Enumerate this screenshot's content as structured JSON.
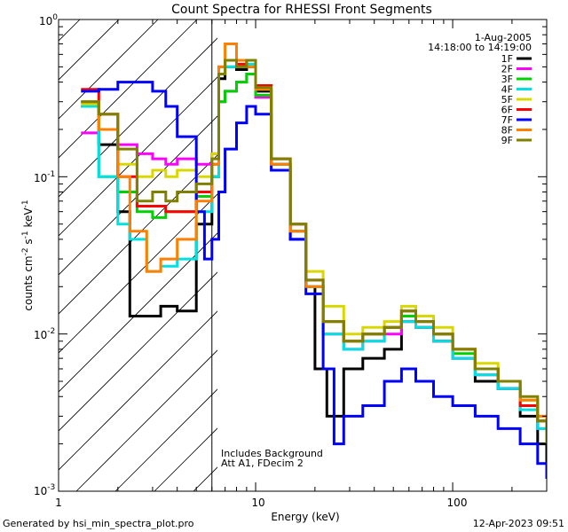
{
  "chart_data": {
    "type": "line",
    "title": "Count Spectra for RHESSI Front Segments",
    "xlabel": "Energy (keV)",
    "ylabel": {
      "base": "counts cm",
      "exp1": "-2",
      "mid": " s",
      "exp2": "-1",
      "mid2": " keV",
      "exp3": "-1"
    },
    "x_scale": "log",
    "y_scale": "log",
    "xlim": [
      1,
      300
    ],
    "ylim": [
      0.001,
      1
    ],
    "x_ticks": [
      {
        "value": 1,
        "label": "1"
      },
      {
        "value": 10,
        "label": "10"
      },
      {
        "value": 100,
        "label": "100"
      }
    ],
    "y_ticks": [
      {
        "value": 1,
        "label": "10",
        "exp": "0"
      },
      {
        "value": 0.1,
        "label": "10",
        "exp": "-1"
      },
      {
        "value": 0.01,
        "label": "10",
        "exp": "-2"
      },
      {
        "value": 0.001,
        "label": "10",
        "exp": "-3"
      }
    ],
    "attenuator_boundary_keV": 6,
    "hatched_region_keV": [
      1,
      6
    ],
    "date": "1-Aug-2005",
    "time_range": "14:18:00 to 14:19:00",
    "annotations": [
      "Includes Background",
      "Att A1, FDecim 2"
    ],
    "footer_left": "Generated by hsi_min_spectra_plot.pro",
    "footer_right": "12-Apr-2023 09:51",
    "series": [
      {
        "name": "1F",
        "color": "#000000",
        "points": [
          [
            1.3,
            0.28
          ],
          [
            1.6,
            0.16
          ],
          [
            2.0,
            0.06
          ],
          [
            2.3,
            0.013
          ],
          [
            2.8,
            0.013
          ],
          [
            3.3,
            0.015
          ],
          [
            4.0,
            0.014
          ],
          [
            5.0,
            0.05
          ],
          [
            6.0,
            0.1
          ],
          [
            6.5,
            0.42
          ],
          [
            7.0,
            0.5
          ],
          [
            8.0,
            0.48
          ],
          [
            9.0,
            0.5
          ],
          [
            10,
            0.35
          ],
          [
            12,
            0.12
          ],
          [
            15,
            0.04
          ],
          [
            18,
            0.02
          ],
          [
            20,
            0.006
          ],
          [
            23,
            0.003
          ],
          [
            28,
            0.006
          ],
          [
            35,
            0.007
          ],
          [
            45,
            0.008
          ],
          [
            55,
            0.012
          ],
          [
            65,
            0.011
          ],
          [
            80,
            0.009
          ],
          [
            100,
            0.007
          ],
          [
            130,
            0.005
          ],
          [
            170,
            0.0045
          ],
          [
            220,
            0.003
          ],
          [
            270,
            0.002
          ],
          [
            300,
            0.0015
          ]
        ]
      },
      {
        "name": "2F",
        "color": "#ff00ff",
        "points": [
          [
            1.3,
            0.19
          ],
          [
            1.6,
            0.2
          ],
          [
            2.0,
            0.16
          ],
          [
            2.5,
            0.14
          ],
          [
            3.0,
            0.13
          ],
          [
            3.5,
            0.12
          ],
          [
            4.0,
            0.13
          ],
          [
            5.0,
            0.12
          ],
          [
            6.0,
            0.14
          ],
          [
            6.5,
            0.3
          ],
          [
            7.0,
            0.35
          ],
          [
            8.0,
            0.4
          ],
          [
            9.0,
            0.45
          ],
          [
            10,
            0.32
          ],
          [
            12,
            0.12
          ],
          [
            15,
            0.045
          ],
          [
            18,
            0.02
          ],
          [
            22,
            0.01
          ],
          [
            28,
            0.008
          ],
          [
            35,
            0.009
          ],
          [
            45,
            0.01
          ],
          [
            55,
            0.012
          ],
          [
            65,
            0.011
          ],
          [
            80,
            0.009
          ],
          [
            100,
            0.007
          ],
          [
            130,
            0.0055
          ],
          [
            170,
            0.0045
          ],
          [
            220,
            0.0035
          ],
          [
            270,
            0.0025
          ],
          [
            300,
            0.002
          ]
        ]
      },
      {
        "name": "3F",
        "color": "#00d000",
        "points": [
          [
            1.3,
            0.3
          ],
          [
            1.6,
            0.1
          ],
          [
            2.0,
            0.08
          ],
          [
            2.5,
            0.06
          ],
          [
            3.0,
            0.055
          ],
          [
            3.5,
            0.06
          ],
          [
            4.0,
            0.06
          ],
          [
            5.0,
            0.075
          ],
          [
            6.0,
            0.1
          ],
          [
            6.5,
            0.3
          ],
          [
            7.0,
            0.35
          ],
          [
            8.0,
            0.4
          ],
          [
            9.0,
            0.45
          ],
          [
            10,
            0.33
          ],
          [
            12,
            0.12
          ],
          [
            15,
            0.045
          ],
          [
            18,
            0.02
          ],
          [
            22,
            0.012
          ],
          [
            28,
            0.009
          ],
          [
            35,
            0.01
          ],
          [
            45,
            0.011
          ],
          [
            55,
            0.013
          ],
          [
            65,
            0.012
          ],
          [
            80,
            0.01
          ],
          [
            100,
            0.0075
          ],
          [
            130,
            0.006
          ],
          [
            170,
            0.005
          ],
          [
            220,
            0.0038
          ],
          [
            270,
            0.0028
          ],
          [
            300,
            0.0022
          ]
        ]
      },
      {
        "name": "4F",
        "color": "#00e0e0",
        "points": [
          [
            1.3,
            0.28
          ],
          [
            1.6,
            0.1
          ],
          [
            2.0,
            0.05
          ],
          [
            2.3,
            0.04
          ],
          [
            2.8,
            0.025
          ],
          [
            3.3,
            0.027
          ],
          [
            4.0,
            0.03
          ],
          [
            5.0,
            0.06
          ],
          [
            6.0,
            0.1
          ],
          [
            6.5,
            0.45
          ],
          [
            7.0,
            0.5
          ],
          [
            8.0,
            0.5
          ],
          [
            9.0,
            0.52
          ],
          [
            10,
            0.36
          ],
          [
            12,
            0.12
          ],
          [
            15,
            0.045
          ],
          [
            18,
            0.02
          ],
          [
            22,
            0.01
          ],
          [
            28,
            0.008
          ],
          [
            35,
            0.009
          ],
          [
            45,
            0.011
          ],
          [
            55,
            0.012
          ],
          [
            65,
            0.011
          ],
          [
            80,
            0.009
          ],
          [
            100,
            0.007
          ],
          [
            130,
            0.0055
          ],
          [
            170,
            0.0045
          ],
          [
            220,
            0.0033
          ],
          [
            270,
            0.0025
          ],
          [
            300,
            0.002
          ]
        ]
      },
      {
        "name": "5F",
        "color": "#d8d800",
        "points": [
          [
            1.3,
            0.29
          ],
          [
            1.6,
            0.2
          ],
          [
            2.0,
            0.12
          ],
          [
            2.5,
            0.1
          ],
          [
            3.0,
            0.11
          ],
          [
            3.5,
            0.1
          ],
          [
            4.0,
            0.11
          ],
          [
            5.0,
            0.1
          ],
          [
            6.0,
            0.14
          ],
          [
            6.5,
            0.45
          ],
          [
            7.0,
            0.55
          ],
          [
            8.0,
            0.5
          ],
          [
            9.0,
            0.55
          ],
          [
            10,
            0.38
          ],
          [
            12,
            0.13
          ],
          [
            15,
            0.05
          ],
          [
            18,
            0.025
          ],
          [
            22,
            0.015
          ],
          [
            28,
            0.01
          ],
          [
            35,
            0.011
          ],
          [
            45,
            0.012
          ],
          [
            55,
            0.015
          ],
          [
            65,
            0.013
          ],
          [
            80,
            0.011
          ],
          [
            100,
            0.008
          ],
          [
            130,
            0.0065
          ],
          [
            170,
            0.005
          ],
          [
            220,
            0.0038
          ],
          [
            270,
            0.003
          ],
          [
            300,
            0.0025
          ]
        ]
      },
      {
        "name": "6F",
        "color": "#ff0000",
        "points": [
          [
            1.3,
            0.36
          ],
          [
            1.6,
            0.25
          ],
          [
            2.0,
            0.1
          ],
          [
            2.5,
            0.065
          ],
          [
            3.0,
            0.065
          ],
          [
            3.5,
            0.06
          ],
          [
            4.0,
            0.06
          ],
          [
            5.0,
            0.08
          ],
          [
            6.0,
            0.12
          ],
          [
            6.5,
            0.5
          ],
          [
            7.0,
            0.55
          ],
          [
            8.0,
            0.52
          ],
          [
            9.0,
            0.55
          ],
          [
            10,
            0.38
          ],
          [
            12,
            0.13
          ],
          [
            15,
            0.05
          ],
          [
            18,
            0.022
          ],
          [
            22,
            0.012
          ],
          [
            28,
            0.009
          ],
          [
            35,
            0.01
          ],
          [
            45,
            0.011
          ],
          [
            55,
            0.014
          ],
          [
            65,
            0.012
          ],
          [
            80,
            0.01
          ],
          [
            100,
            0.008
          ],
          [
            130,
            0.006
          ],
          [
            170,
            0.005
          ],
          [
            220,
            0.0035
          ],
          [
            270,
            0.0028
          ],
          [
            300,
            0.0022
          ]
        ]
      },
      {
        "name": "7F",
        "color": "#0000ff",
        "points": [
          [
            1.3,
            0.35
          ],
          [
            1.6,
            0.36
          ],
          [
            2.0,
            0.4
          ],
          [
            2.5,
            0.4
          ],
          [
            3.0,
            0.35
          ],
          [
            3.5,
            0.28
          ],
          [
            4.0,
            0.18
          ],
          [
            5.0,
            0.06
          ],
          [
            5.5,
            0.03
          ],
          [
            6.0,
            0.04
          ],
          [
            6.5,
            0.08
          ],
          [
            7.0,
            0.15
          ],
          [
            8.0,
            0.22
          ],
          [
            9.0,
            0.28
          ],
          [
            10,
            0.25
          ],
          [
            12,
            0.11
          ],
          [
            15,
            0.04
          ],
          [
            18,
            0.018
          ],
          [
            22,
            0.006
          ],
          [
            25,
            0.002
          ],
          [
            28,
            0.003
          ],
          [
            35,
            0.0035
          ],
          [
            45,
            0.005
          ],
          [
            55,
            0.006
          ],
          [
            65,
            0.005
          ],
          [
            80,
            0.004
          ],
          [
            100,
            0.0035
          ],
          [
            130,
            0.003
          ],
          [
            170,
            0.0025
          ],
          [
            220,
            0.002
          ],
          [
            270,
            0.0015
          ],
          [
            300,
            0.0012
          ]
        ]
      },
      {
        "name": "8F",
        "color": "#ff8000",
        "points": [
          [
            1.3,
            0.3
          ],
          [
            1.6,
            0.2
          ],
          [
            2.0,
            0.1
          ],
          [
            2.3,
            0.045
          ],
          [
            2.8,
            0.025
          ],
          [
            3.3,
            0.03
          ],
          [
            4.0,
            0.04
          ],
          [
            5.0,
            0.07
          ],
          [
            6.0,
            0.12
          ],
          [
            6.5,
            0.5
          ],
          [
            7.0,
            0.7
          ],
          [
            8.0,
            0.55
          ],
          [
            9.0,
            0.5
          ],
          [
            10,
            0.36
          ],
          [
            12,
            0.12
          ],
          [
            15,
            0.045
          ],
          [
            18,
            0.02
          ],
          [
            22,
            0.012
          ],
          [
            28,
            0.009
          ],
          [
            35,
            0.01
          ],
          [
            45,
            0.011
          ],
          [
            55,
            0.014
          ],
          [
            65,
            0.012
          ],
          [
            80,
            0.01
          ],
          [
            100,
            0.008
          ],
          [
            130,
            0.006
          ],
          [
            170,
            0.005
          ],
          [
            220,
            0.0038
          ],
          [
            270,
            0.003
          ],
          [
            300,
            0.0025
          ]
        ]
      },
      {
        "name": "9F",
        "color": "#808000",
        "points": [
          [
            1.3,
            0.3
          ],
          [
            1.6,
            0.25
          ],
          [
            2.0,
            0.15
          ],
          [
            2.5,
            0.07
          ],
          [
            3.0,
            0.08
          ],
          [
            3.5,
            0.07
          ],
          [
            4.0,
            0.08
          ],
          [
            5.0,
            0.09
          ],
          [
            6.0,
            0.13
          ],
          [
            6.5,
            0.45
          ],
          [
            7.0,
            0.55
          ],
          [
            8.0,
            0.5
          ],
          [
            9.0,
            0.55
          ],
          [
            10,
            0.37
          ],
          [
            12,
            0.13
          ],
          [
            15,
            0.05
          ],
          [
            18,
            0.022
          ],
          [
            22,
            0.012
          ],
          [
            28,
            0.009
          ],
          [
            35,
            0.01
          ],
          [
            45,
            0.011
          ],
          [
            55,
            0.014
          ],
          [
            65,
            0.012
          ],
          [
            80,
            0.01
          ],
          [
            100,
            0.008
          ],
          [
            130,
            0.006
          ],
          [
            170,
            0.005
          ],
          [
            220,
            0.004
          ],
          [
            270,
            0.0028
          ],
          [
            300,
            0.002
          ]
        ]
      }
    ]
  }
}
